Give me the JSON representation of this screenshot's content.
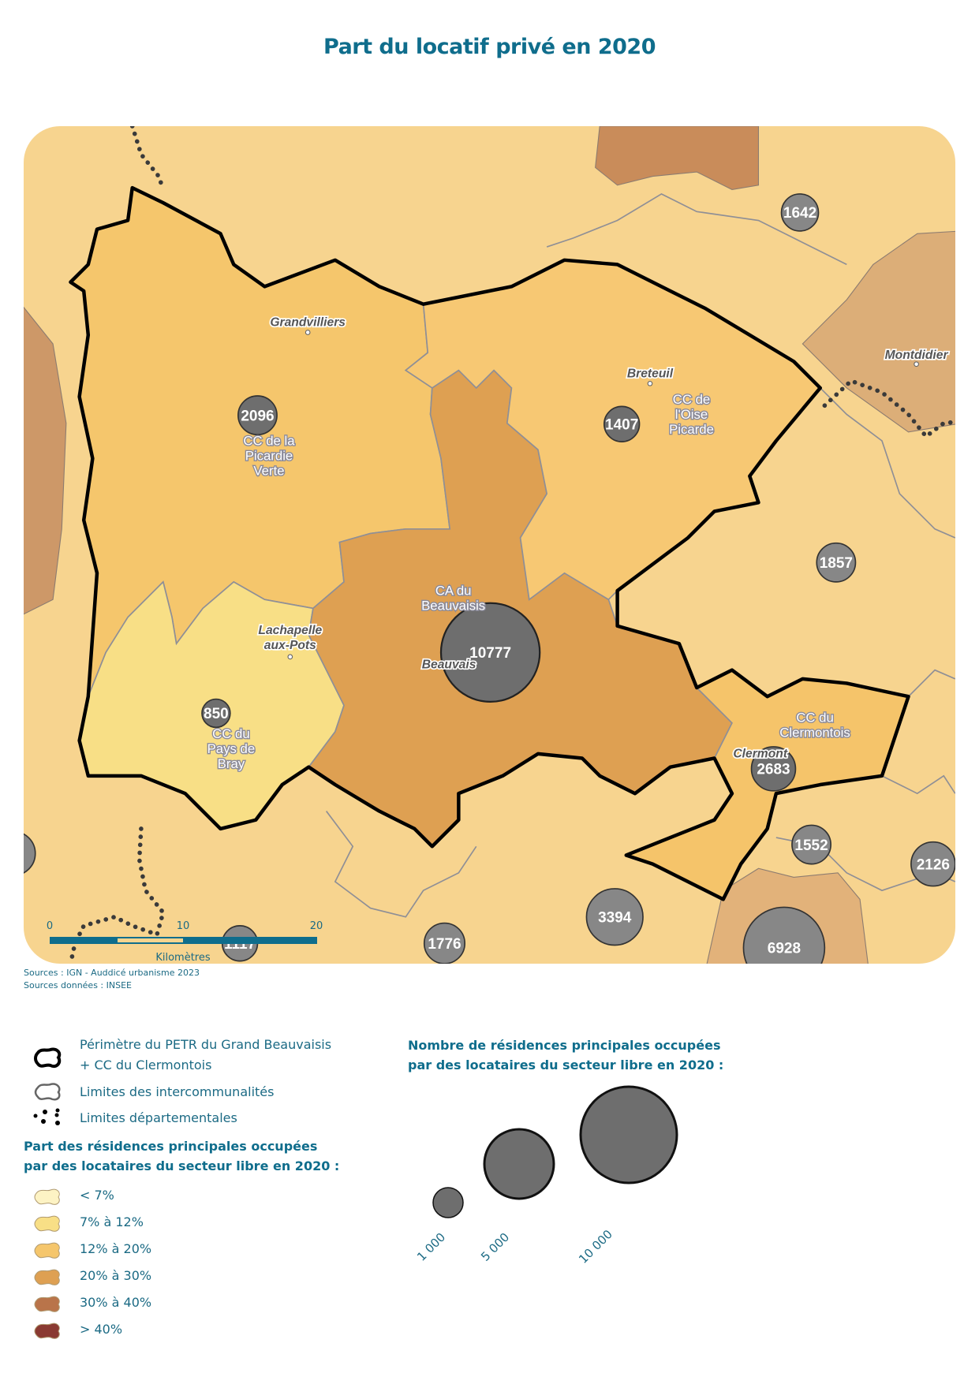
{
  "title": "Part du locatif privé en 2020",
  "map": {
    "places": {
      "grandvilliers": "Grandvilliers",
      "breteuil": "Breteuil",
      "montdidier": "Montdidier",
      "lachapelle_1": "Lachapelle",
      "lachapelle_2": "aux-Pots",
      "beauvais": "Beauvais",
      "clermont": "Clermont"
    },
    "epci": {
      "picardie_verte": [
        "CC de la",
        "Picardie",
        "Verte"
      ],
      "oise_picarde": [
        "CC de",
        "l'Oise",
        "Picarde"
      ],
      "beauvaisis": [
        "CA du",
        "Beauvaisis"
      ],
      "pays_de_bray": [
        "CC du",
        "Pays de",
        "Bray"
      ],
      "clermontois": [
        "CC du",
        "Clermontois"
      ]
    },
    "epci_classes": {
      "picardie_verte": "12% à 20%",
      "oise_picarde": "12% à 20%",
      "beauvaisis": "20% à 30%",
      "pays_de_bray": "7% à 12%",
      "clermontois": "12% à 20%"
    },
    "circles": {
      "c1642": "1642",
      "c2096": "2096",
      "c1407": "1407",
      "c1857": "1857",
      "c10777": "10777",
      "c850": "850",
      "c2683": "2683",
      "c1552": "1552",
      "c2126": "2126",
      "c3394": "3394",
      "c1776": "1776",
      "c6928": "6928",
      "c1117": "1117"
    },
    "scale": {
      "t0": "0",
      "t10": "10",
      "t20": "20",
      "unit": "Kilomètres"
    }
  },
  "sources": {
    "line1": "Sources : IGN - Auddicé urbanisme 2023",
    "line2": "Sources données : INSEE"
  },
  "legend": {
    "petr_1": "Périmètre du PETR du Grand Beauvaisis",
    "petr_2": "+ CC du Clermontois",
    "intercom": "Limites des intercommunalités",
    "departement": "Limites départementales",
    "share_title_1": "Part des résidences principales occupées",
    "share_title_2": "par des locataires du secteur libre en 2020 :",
    "classes": [
      {
        "label": "< 7%",
        "color": "#fdf3c4"
      },
      {
        "label": "7% à 12%",
        "color": "#f8df86"
      },
      {
        "label": "12% à 20%",
        "color": "#f5c66c"
      },
      {
        "label": "20% à 30%",
        "color": "#dea052"
      },
      {
        "label": "30% à 40%",
        "color": "#b9744a"
      },
      {
        "label": "> 40%",
        "color": "#8a3a32"
      }
    ],
    "count_title_1": "Nombre de résidences principales occupées",
    "count_title_2": "par des locataires du secteur libre en 2020 :",
    "bubbles": [
      {
        "label": "1 000",
        "value": 1000
      },
      {
        "label": "5 000",
        "value": 5000
      },
      {
        "label": "10 000",
        "value": 10000
      }
    ]
  },
  "colors": {
    "title": "#0f6d8c",
    "circle": "#6e6e6e",
    "background": "#f7d48f"
  }
}
